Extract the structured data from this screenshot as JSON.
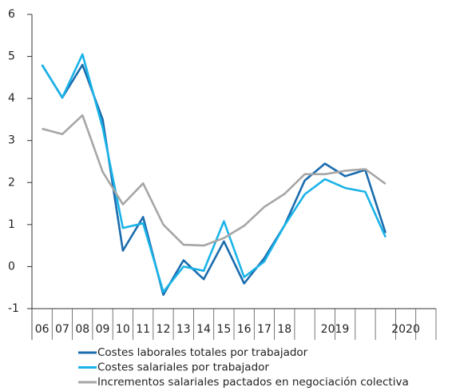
{
  "chart_data": {
    "type": "line",
    "categories": [
      "06",
      "07",
      "08",
      "09",
      "10",
      "11",
      "12",
      "13",
      "14",
      "15",
      "16",
      "17",
      "18",
      null,
      null,
      null,
      null,
      null,
      null,
      null
    ],
    "groups": [
      {
        "label": "2019",
        "span": 4
      },
      {
        "label": "2020",
        "span": 3
      }
    ],
    "series": [
      {
        "name": "Costes laborales totales por trabajador",
        "color": "#1b6cae",
        "values": [
          4.8,
          4.02,
          4.8,
          3.5,
          0.38,
          1.18,
          -0.67,
          0.15,
          -0.3,
          0.6,
          -0.4,
          0.2,
          0.98,
          2.05,
          2.45,
          2.15,
          2.3,
          0.8,
          null,
          null
        ]
      },
      {
        "name": "Costes salariales por trabajador",
        "color": "#1ab3e8",
        "values": [
          4.8,
          4.02,
          5.05,
          3.3,
          0.92,
          1.03,
          -0.6,
          0.0,
          -0.1,
          1.08,
          -0.25,
          0.12,
          0.98,
          1.72,
          2.08,
          1.87,
          1.78,
          0.7,
          null,
          null
        ]
      },
      {
        "name": "Incrementos salariales pactados en negociación colectiva",
        "color": "#a6a6a6",
        "values": [
          3.28,
          3.15,
          3.6,
          2.25,
          1.48,
          1.98,
          1.0,
          0.52,
          0.5,
          0.68,
          0.97,
          1.42,
          1.73,
          2.2,
          2.2,
          2.28,
          2.32,
          1.97,
          null,
          null
        ]
      }
    ],
    "ylim": [
      -1,
      6
    ],
    "yticks": [
      -1,
      0,
      1,
      2,
      3,
      4,
      5,
      6
    ],
    "grid": false,
    "legend": "bottom"
  }
}
